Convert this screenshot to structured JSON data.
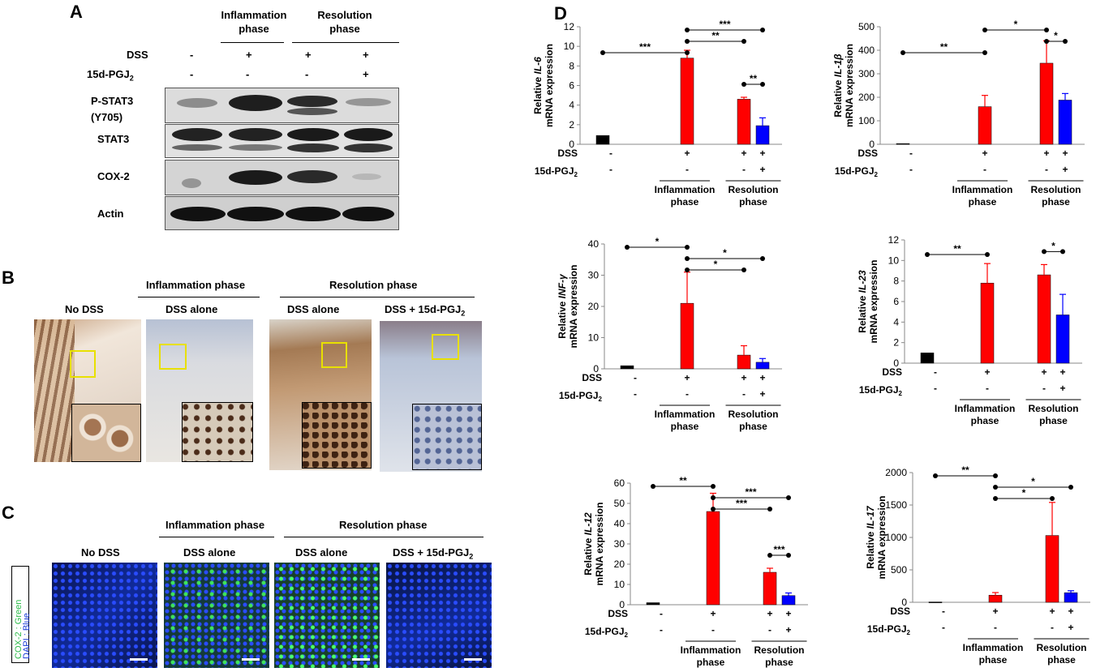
{
  "panel_labels": {
    "a": "A",
    "b": "B",
    "c": "C",
    "d": "D"
  },
  "western": {
    "group_inflammation": [
      "Inflammation",
      "phase"
    ],
    "group_resolution": [
      "Resolution",
      "phase"
    ],
    "row_dss": {
      "label": "DSS",
      "values": [
        "-",
        "+",
        "+",
        "+"
      ]
    },
    "row_pgj": {
      "label_main": "15d-PGJ",
      "label_sub": "2",
      "values": [
        "-",
        "-",
        "-",
        "+"
      ]
    },
    "blots": [
      "P-STAT3",
      "(Y705)",
      "STAT3",
      "COX-2",
      "Actin"
    ]
  },
  "ihc": {
    "group_inflammation": "Inflammation phase",
    "group_resolution": "Resolution phase",
    "cols": [
      "No DSS",
      "DSS alone",
      "DSS alone",
      "DSS + 15d-PGJ"
    ],
    "col4_sub": "2"
  },
  "if": {
    "group_inflammation": "Inflammation phase",
    "group_resolution": "Resolution phase",
    "cols": [
      "No DSS",
      "DSS alone",
      "DSS alone",
      "DSS + 15d-PGJ"
    ],
    "col4_sub": "2",
    "legend_green": "COX-2 : Green",
    "legend_blue": "DAPI : Blue"
  },
  "colors": {
    "black_bar": "#000000",
    "red_bar": "#ff0000",
    "blue_bar": "#0000ff",
    "green_stain": "#3ee35a",
    "blue_stain": "#1437d6"
  },
  "chart_data": [
    {
      "type": "bar",
      "gene": "IL-6",
      "ylabel_pre": "Relative ",
      "ylabel_gene": "IL-6",
      "ylabel_post": "mRNA expression",
      "ylim": [
        0,
        12
      ],
      "ticks": [
        0,
        2,
        4,
        6,
        8,
        10,
        12
      ],
      "values": [
        0.9,
        8.8,
        4.6,
        1.9
      ],
      "errors": [
        0,
        0.8,
        0.2,
        0.8
      ],
      "sig": [
        {
          "from": 0,
          "to": 1,
          "label": "***",
          "level": 0
        },
        {
          "from": 1,
          "to": 2,
          "label": "**",
          "level": 1
        },
        {
          "from": 1,
          "to": 3,
          "label": "***",
          "level": 2
        },
        {
          "from": 2,
          "to": 3,
          "label": "**",
          "level": -1
        }
      ]
    },
    {
      "type": "bar",
      "gene": "IL-1β",
      "ylabel_pre": "Relative ",
      "ylabel_gene": "IL-1β",
      "ylabel_post": "mRNA expression",
      "ylim": [
        0,
        500
      ],
      "ticks": [
        0,
        100,
        200,
        300,
        400,
        500
      ],
      "values": [
        3,
        160,
        345,
        188
      ],
      "errors": [
        0,
        48,
        95,
        28
      ],
      "sig": [
        {
          "from": 0,
          "to": 1,
          "label": "**",
          "level": 0
        },
        {
          "from": 1,
          "to": 2,
          "label": "*",
          "level": 2
        },
        {
          "from": 2,
          "to": 3,
          "label": "*",
          "level": 1
        }
      ]
    },
    {
      "type": "bar",
      "gene": "INF-γ",
      "ylabel_pre": "Relative ",
      "ylabel_gene": "INF-γ",
      "ylabel_post": "mRNA expression",
      "ylim": [
        0,
        40
      ],
      "ticks": [
        0,
        10,
        20,
        30,
        40
      ],
      "values": [
        1,
        21,
        4.4,
        2.1
      ],
      "errors": [
        0,
        10,
        3,
        1.2
      ],
      "sig": [
        {
          "from": 0,
          "to": 1,
          "label": "*",
          "level": 2
        },
        {
          "from": 1,
          "to": 2,
          "label": "*",
          "level": 0
        },
        {
          "from": 1,
          "to": 3,
          "label": "*",
          "level": 1
        }
      ]
    },
    {
      "type": "bar",
      "gene": "IL-23",
      "ylabel_pre": "Relative ",
      "ylabel_gene": "IL-23",
      "ylabel_post": "mRNA expression",
      "ylim": [
        0,
        12
      ],
      "ticks": [
        0,
        2,
        4,
        6,
        8,
        10,
        12
      ],
      "values": [
        1,
        7.8,
        8.6,
        4.7
      ],
      "errors": [
        0,
        1.9,
        1.0,
        2.0
      ],
      "sig": [
        {
          "from": 0,
          "to": 1,
          "label": "**",
          "level": 0
        },
        {
          "from": 2,
          "to": 3,
          "label": "*",
          "level": -1
        }
      ]
    },
    {
      "type": "bar",
      "gene": "IL-12",
      "ylabel_pre": "Relative ",
      "ylabel_gene": "IL-12",
      "ylabel_post": "mRNA expression",
      "ylim": [
        0,
        60
      ],
      "ticks": [
        0,
        10,
        20,
        30,
        40,
        50,
        60
      ],
      "values": [
        1,
        46,
        16,
        4.5
      ],
      "errors": [
        0,
        9,
        2,
        1.3
      ],
      "sig": [
        {
          "from": 0,
          "to": 1,
          "label": "**",
          "level": 2
        },
        {
          "from": 1,
          "to": 2,
          "label": "***",
          "level": 0
        },
        {
          "from": 1,
          "to": 3,
          "label": "***",
          "level": 1
        },
        {
          "from": 2,
          "to": 3,
          "label": "***",
          "level": -1
        }
      ]
    },
    {
      "type": "bar",
      "gene": "IL-17",
      "ylabel_pre": "Relative ",
      "ylabel_gene": "IL-17",
      "ylabel_post": "mRNA expression",
      "ylim": [
        0,
        2000
      ],
      "ticks": [
        0,
        500,
        1000,
        1500,
        2000
      ],
      "values": [
        5,
        110,
        1030,
        148
      ],
      "errors": [
        0,
        40,
        510,
        30
      ],
      "sig": [
        {
          "from": 0,
          "to": 1,
          "label": "**",
          "level": 2
        },
        {
          "from": 1,
          "to": 2,
          "label": "*",
          "level": 0
        },
        {
          "from": 1,
          "to": 3,
          "label": "*",
          "level": 1
        }
      ]
    }
  ],
  "chart_axis": {
    "dss_label": "DSS",
    "dss_values": [
      "-",
      "+",
      "+",
      "+"
    ],
    "pgj_label": "15d-PGJ",
    "pgj_sub": "2",
    "pgj_values": [
      "-",
      "-",
      "-",
      "+"
    ],
    "group1": [
      "Inflammation",
      "phase"
    ],
    "group2": [
      "Resolution",
      "phase"
    ]
  }
}
